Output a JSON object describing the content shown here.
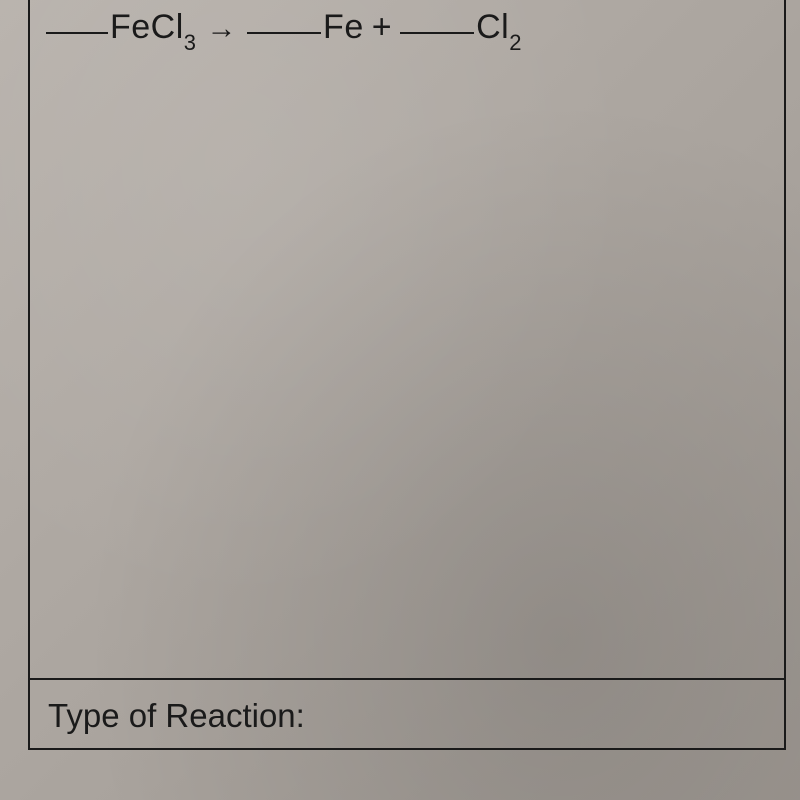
{
  "equation": {
    "reactant1": "FeCl",
    "reactant1_sub": "3",
    "arrow": "→",
    "product1": "Fe",
    "plus": "+",
    "product2": "Cl",
    "product2_sub": "2"
  },
  "bottom": {
    "label": "Type of Reaction:"
  },
  "styling": {
    "background_color": "#a8a29c",
    "border_color": "#1a1a1a",
    "text_color": "#1a1a1a",
    "border_width": 2.5,
    "equation_fontsize": 34,
    "label_fontsize": 33,
    "sub_fontsize": 22,
    "blank_width": 62
  }
}
